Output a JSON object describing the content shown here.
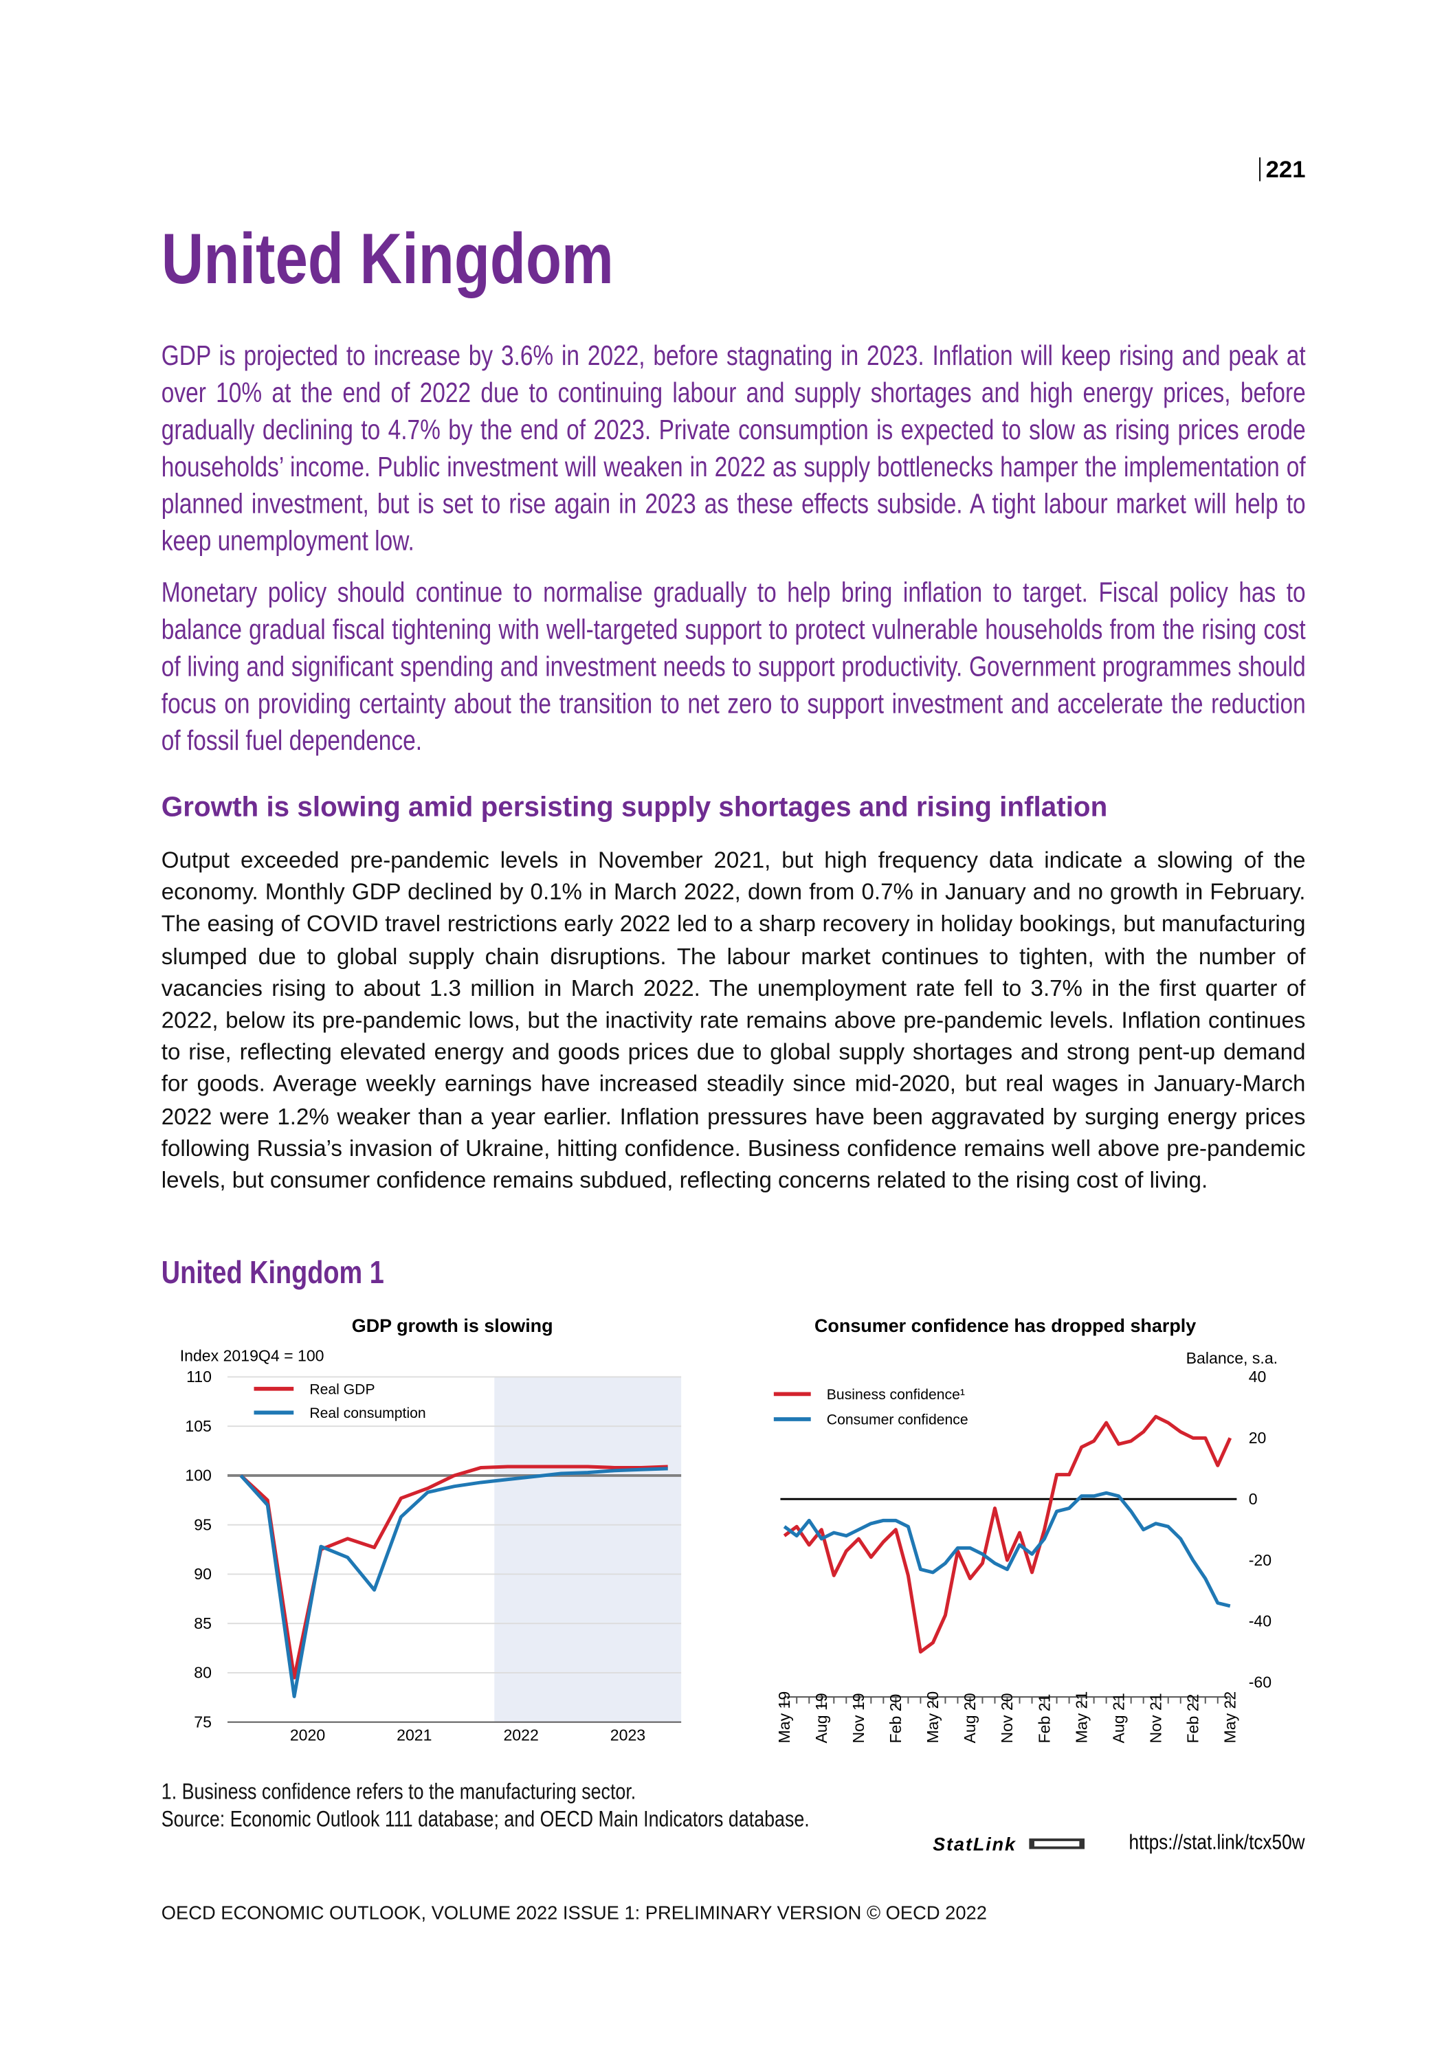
{
  "page_number": "221",
  "header": {
    "title": "United Kingdom"
  },
  "summary": [
    "GDP is projected to increase by 3.6% in 2022, before stagnating in 2023. Inflation will keep rising and peak at over 10% at the end of 2022 due to continuing labour and supply shortages and high energy prices, before gradually declining to 4.7% by the end of 2023. Private consumption is expected to slow as rising prices erode households’ income. Public investment will weaken in 2022 as supply bottlenecks hamper the implementation of planned investment, but is set to rise again in 2023 as these effects subside. A tight labour market will help to keep unemployment low.",
    "Monetary policy should continue to normalise gradually to help bring inflation to target. Fiscal policy has to balance gradual fiscal tightening with well-targeted support to protect vulnerable households from the rising cost of living and significant spending and investment needs to support productivity. Government programmes should focus on providing certainty about the transition to net zero to support investment and accelerate the reduction of fossil fuel dependence."
  ],
  "section": {
    "heading": "Growth is slowing amid persisting supply shortages and rising inflation",
    "body": "Output exceeded pre-pandemic levels in November 2021, but high frequency data indicate a slowing of the economy. Monthly GDP declined by 0.1% in March 2022, down from 0.7% in January and no growth in February. The easing of COVID travel restrictions early 2022 led to a sharp recovery in holiday bookings, but manufacturing slumped due to global supply chain disruptions. The labour market continues to tighten, with the number of vacancies rising to about 1.3 million in March 2022. The unemployment rate fell to 3.7% in the first quarter of 2022, below its pre-pandemic lows, but the inactivity rate remains above pre-pandemic levels. Inflation continues to rise, reflecting elevated energy and goods prices due to global supply shortages and strong pent-up demand for goods. Average weekly earnings have increased steadily since mid-2020, but real wages in January-March 2022 were 1.2% weaker than a year earlier. Inflation pressures have been aggravated by surging energy prices following Russia’s invasion of Ukraine, hitting confidence. Business confidence remains well above pre-pandemic levels, but consumer confidence remains subdued, reflecting concerns related to the rising cost of living."
  },
  "figure_title": "United Kingdom 1",
  "chart_data": [
    {
      "type": "line",
      "title": "GDP growth is slowing",
      "y_label": "Index 2019Q4 = 100",
      "x": [
        2019.875,
        2020.125,
        2020.375,
        2020.625,
        2020.875,
        2021.125,
        2021.375,
        2021.625,
        2021.875,
        2022.125,
        2022.375,
        2022.625,
        2022.875,
        2023.125,
        2023.375,
        2023.625,
        2023.875
      ],
      "xlim": [
        2019.75,
        2024
      ],
      "xticks": [
        {
          "value": 2020.5,
          "label": "2020"
        },
        {
          "value": 2021.5,
          "label": "2021"
        },
        {
          "value": 2022.5,
          "label": "2022"
        },
        {
          "value": 2023.5,
          "label": "2023"
        }
      ],
      "ylim": [
        75,
        110
      ],
      "yticks": [
        75,
        80,
        85,
        90,
        95,
        100,
        105,
        110
      ],
      "grid": true,
      "reference_line": 100,
      "shaded_x": [
        2022.25,
        2024
      ],
      "legend": "upper left",
      "series": [
        {
          "name": "Real GDP",
          "color": "#d3232e",
          "values": [
            100,
            97.5,
            79.5,
            92.5,
            93.6,
            92.7,
            97.7,
            98.7,
            100,
            100.8,
            100.9,
            100.9,
            100.9,
            100.9,
            100.8,
            100.8,
            100.9
          ]
        },
        {
          "name": "Real consumption",
          "color": "#1f78b4",
          "values": [
            100,
            97,
            77.6,
            92.8,
            91.7,
            88.4,
            95.8,
            98.3,
            98.9,
            99.3,
            99.6,
            99.9,
            100.2,
            100.3,
            100.5,
            100.6,
            100.7
          ]
        }
      ]
    },
    {
      "type": "line",
      "title": "Consumer confidence has dropped sharply",
      "y_label": "Balance, s.a.",
      "y_axis": "right",
      "categories": [
        "May 19",
        null,
        null,
        "Aug 19",
        null,
        null,
        "Nov 19",
        null,
        null,
        "Feb 20",
        null,
        null,
        "May 20",
        null,
        null,
        "Aug 20",
        null,
        null,
        "Nov 20",
        null,
        null,
        "Feb 21",
        null,
        null,
        "May 21",
        null,
        null,
        "Aug 21",
        null,
        null,
        "Nov 21",
        null,
        null,
        "Feb 22",
        null,
        null,
        "May 22"
      ],
      "ylim": [
        -60,
        40
      ],
      "yticks": [
        -60,
        -40,
        -20,
        0,
        20,
        40
      ],
      "grid": false,
      "reference_line": 0,
      "legend": "upper left",
      "series": [
        {
          "name": "Business confidence¹",
          "color": "#d3232e",
          "values": [
            -12,
            -9,
            -15,
            -10,
            -25,
            -17,
            -13,
            -19,
            -14,
            -10,
            -25,
            -50,
            -47,
            -38,
            -17,
            -26,
            -21,
            -3,
            -20,
            -11,
            -24,
            -10,
            8,
            8,
            17,
            19,
            25,
            18,
            19,
            22,
            27,
            25,
            22,
            20,
            20,
            11,
            20
          ]
        },
        {
          "name": "Consumer confidence",
          "color": "#1f78b4",
          "values": [
            -9,
            -12,
            -7,
            -13,
            -11,
            -12,
            -10,
            -8,
            -7,
            -7,
            -9,
            -23,
            -24,
            -21,
            -16,
            -16,
            -18,
            -21,
            -23,
            -15,
            -18,
            -13,
            -4,
            -3,
            1,
            1,
            2,
            1,
            -4,
            -10,
            -8,
            -9,
            -13,
            -20,
            -26,
            -34,
            -35
          ]
        }
      ]
    }
  ],
  "notes": [
    "1. Business confidence refers to the manufacturing sector.",
    "Source: Economic Outlook 111 database; and OECD Main Indicators database."
  ],
  "statlink": {
    "label": "StatLink",
    "url": "https://stat.link/tcx50w"
  },
  "footer": "OECD ECONOMIC OUTLOOK, VOLUME 2022 ISSUE 1: PRELIMINARY VERSION © OECD 2022"
}
